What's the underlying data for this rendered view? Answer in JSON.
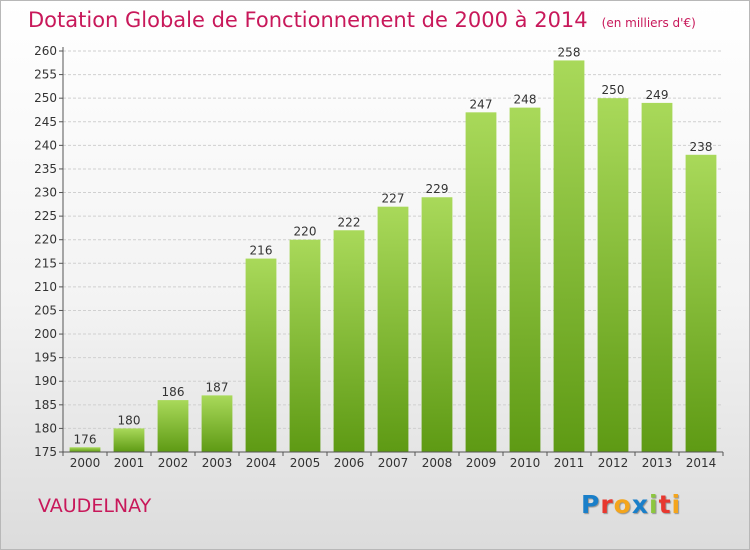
{
  "title": "Dotation Globale de Fonctionnement de 2000 à 2014",
  "unit_note": "(en milliers d'€)",
  "location": "VAUDELNAY",
  "logo": {
    "letters": [
      {
        "ch": "P",
        "color": "#1a7fc9"
      },
      {
        "ch": "r",
        "color": "#e8382f"
      },
      {
        "ch": "o",
        "color": "#f4a51c"
      },
      {
        "ch": "x",
        "color": "#1a7fc9"
      },
      {
        "ch": "i",
        "color": "#8cc63f"
      },
      {
        "ch": "t",
        "color": "#e8382f"
      },
      {
        "ch": "i",
        "color": "#f4a51c"
      }
    ]
  },
  "colors": {
    "title": "#c8185a",
    "bar_light": "#a9d95a",
    "bar_dark": "#5e9a14",
    "grid": "#d0d0d0",
    "axis": "#555555"
  },
  "chart_data": {
    "type": "bar",
    "categories": [
      "2000",
      "2001",
      "2002",
      "2003",
      "2004",
      "2005",
      "2006",
      "2007",
      "2008",
      "2009",
      "2010",
      "2011",
      "2012",
      "2013",
      "2014"
    ],
    "values": [
      176,
      180,
      186,
      187,
      216,
      220,
      222,
      227,
      229,
      247,
      248,
      258,
      250,
      249,
      238
    ],
    "ylim": [
      175,
      260
    ],
    "ytick_step": 5,
    "grid": true,
    "data_labels": true
  }
}
